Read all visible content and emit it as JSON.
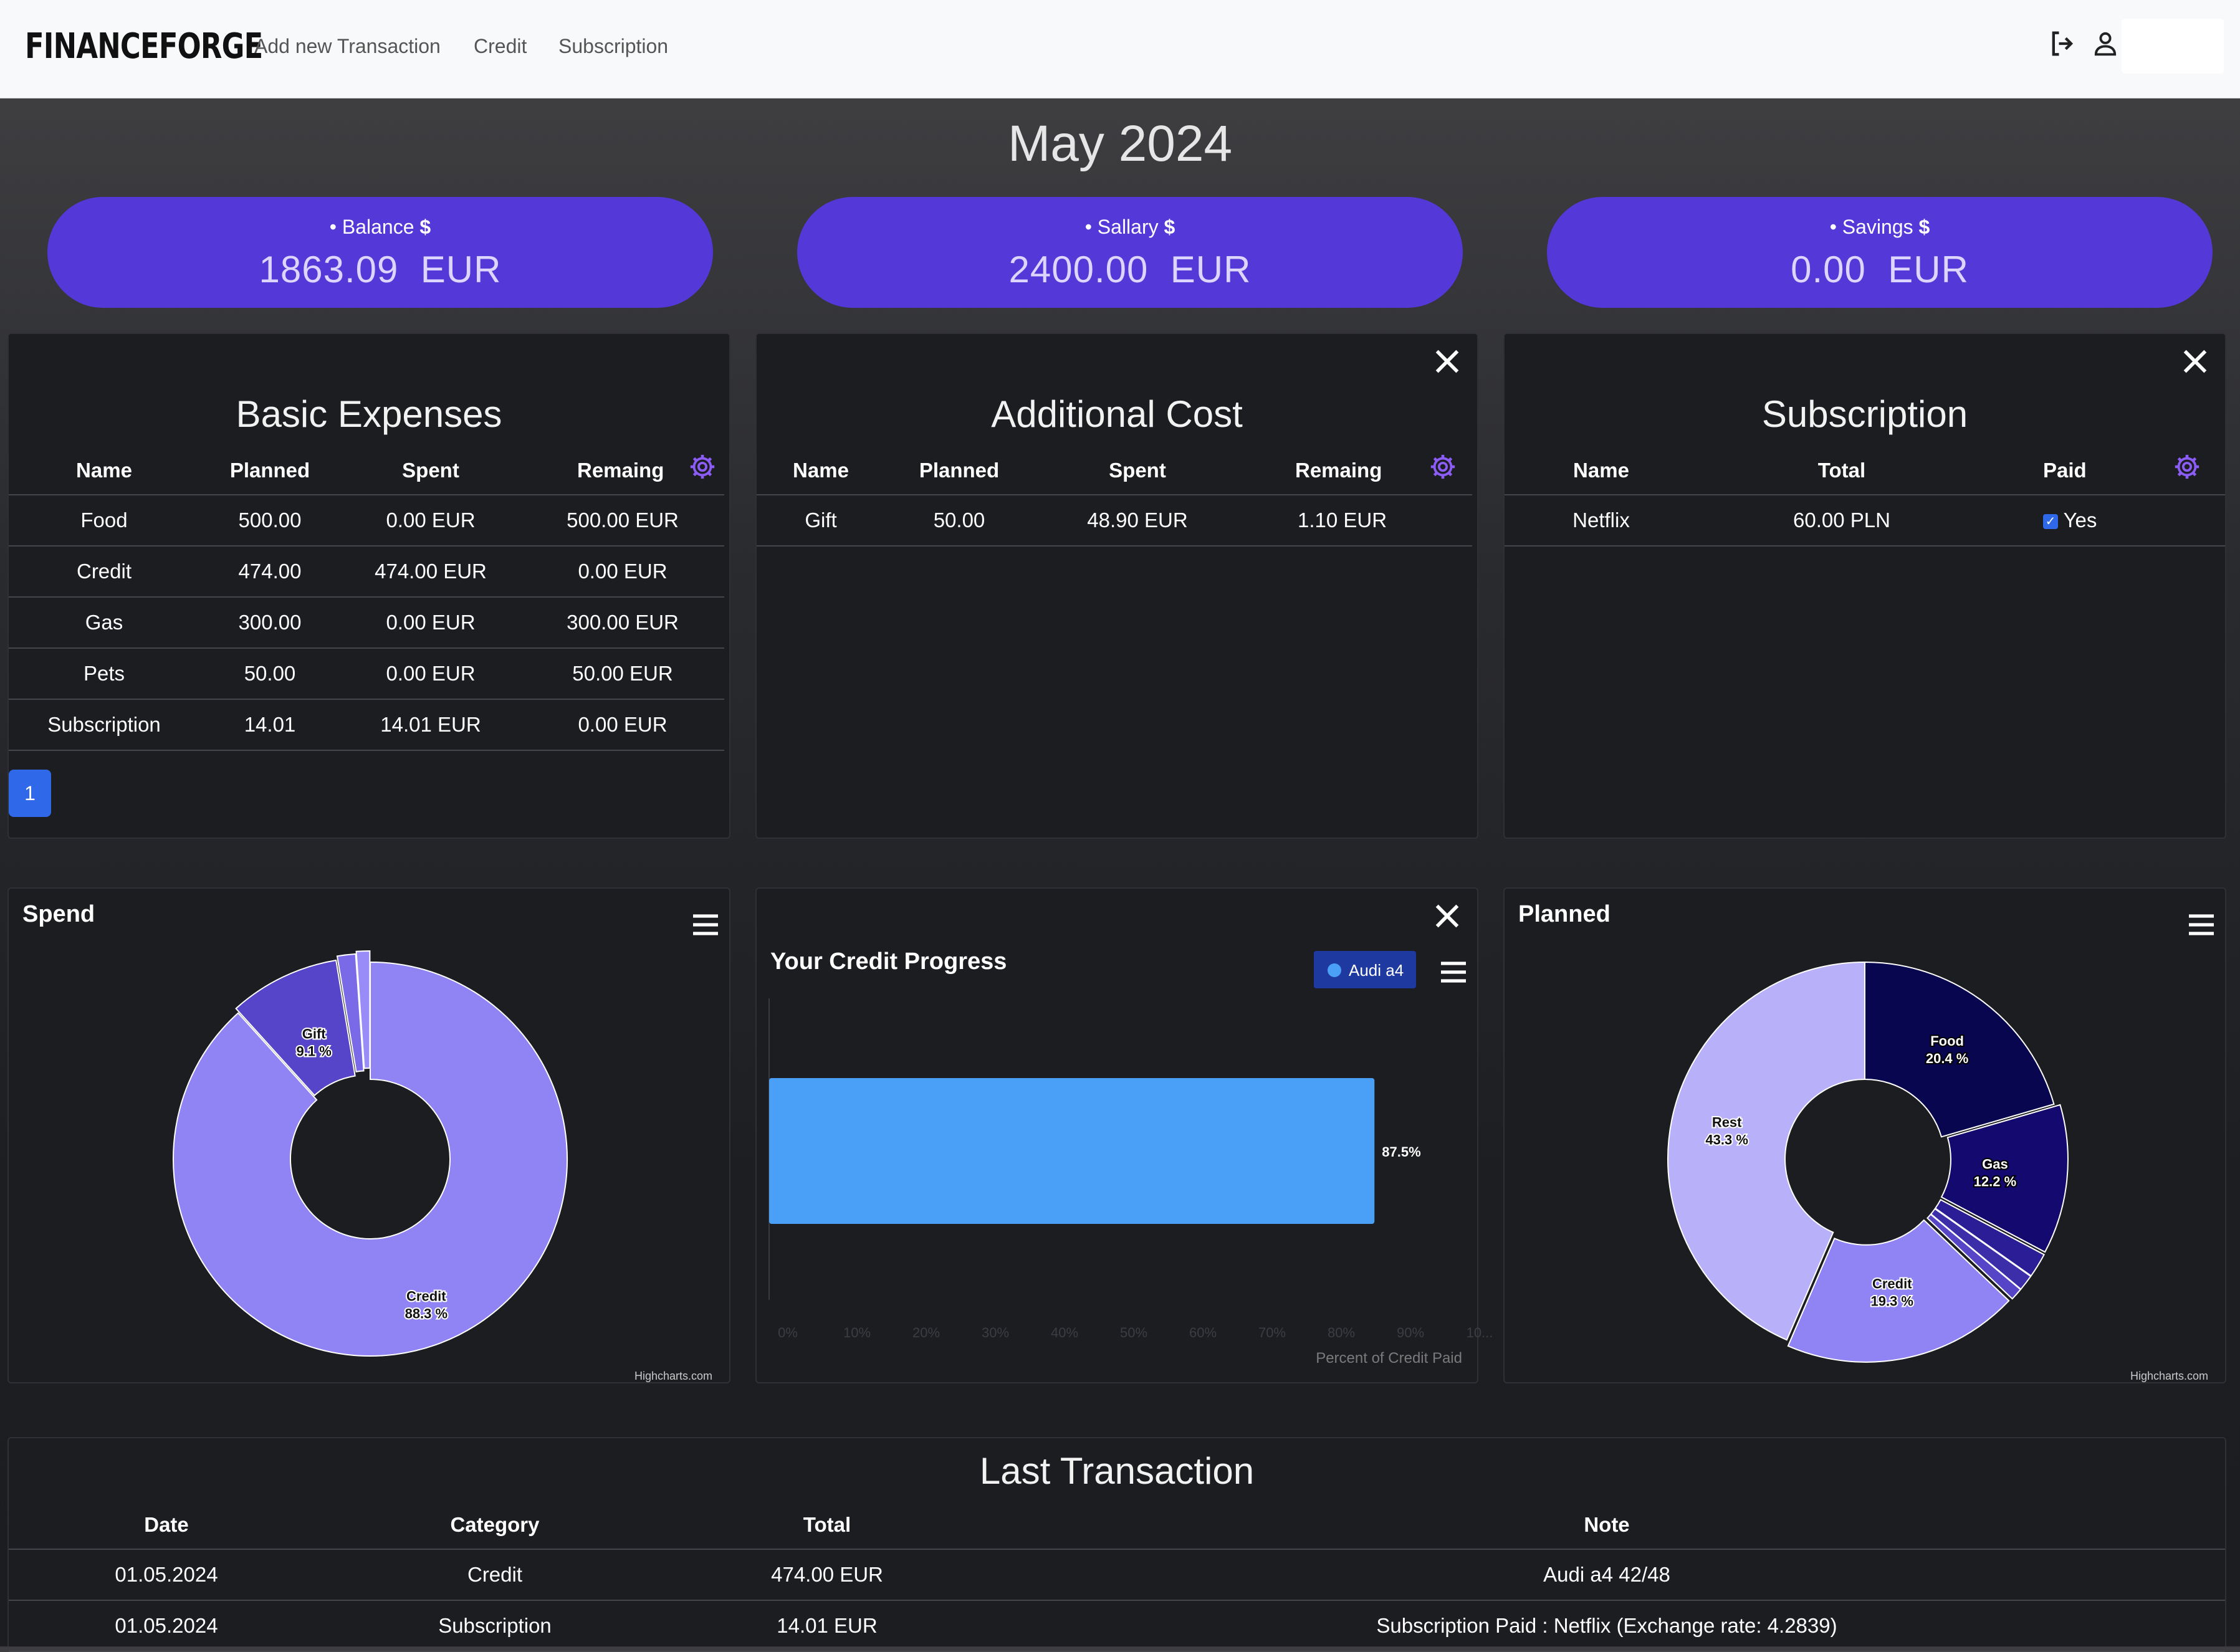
{
  "navbar": {
    "brand": "FINANCEFORGE",
    "links": [
      "Add new Transaction",
      "Credit",
      "Subscription"
    ]
  },
  "month": "May 2024",
  "summary": [
    {
      "label": "Balance",
      "value": "1863.09",
      "currency": "EUR"
    },
    {
      "label": "Sallary",
      "value": "2400.00",
      "currency": "EUR"
    },
    {
      "label": "Savings",
      "value": "0.00",
      "currency": "EUR"
    }
  ],
  "basic": {
    "title": "Basic Expenses",
    "headers": [
      "Name",
      "Planned",
      "Spent",
      "Remaing"
    ],
    "rows": [
      [
        "Food",
        "500.00",
        "0.00 EUR",
        "500.00 EUR"
      ],
      [
        "Credit",
        "474.00",
        "474.00 EUR",
        "0.00 EUR"
      ],
      [
        "Gas",
        "300.00",
        "0.00 EUR",
        "300.00 EUR"
      ],
      [
        "Pets",
        "50.00",
        "0.00 EUR",
        "50.00 EUR"
      ],
      [
        "Subscription",
        "14.01",
        "14.01 EUR",
        "0.00 EUR"
      ]
    ],
    "page": "1"
  },
  "additional": {
    "title": "Additional Cost",
    "headers": [
      "Name",
      "Planned",
      "Spent",
      "Remaing"
    ],
    "rows": [
      [
        "Gift",
        "50.00",
        "48.90 EUR",
        "1.10 EUR"
      ]
    ]
  },
  "subscription": {
    "title": "Subscription",
    "headers": [
      "Name",
      "Total",
      "Paid"
    ],
    "rows": [
      [
        "Netflix",
        "60.00 PLN",
        "Yes"
      ]
    ]
  },
  "spend_chart": {
    "title": "Spend",
    "credits": "Highcharts.com"
  },
  "credit_chart": {
    "title": "Your Credit Progress",
    "legend": "Audi a4",
    "xlabel": "Percent of Credit Paid",
    "ticks": [
      "0%",
      "10%",
      "20%",
      "30%",
      "40%",
      "50%",
      "60%",
      "70%",
      "80%",
      "90%",
      "10..."
    ],
    "value_label": "87.5%"
  },
  "planned_chart": {
    "title": "Planned",
    "credits": "Highcharts.com"
  },
  "chart_data": [
    {
      "type": "pie",
      "title": "Spend",
      "series": [
        {
          "name": "",
          "values": [
            88.3,
            9.1,
            1.5,
            1.1
          ]
        }
      ],
      "categories": [
        "Credit",
        "Gift",
        "",
        ""
      ],
      "labels": [
        "Credit\n88.3 %",
        "Gift\n9.1 %",
        "",
        ""
      ],
      "colors": [
        "#9084f5",
        "#5745c9",
        "#7b6ae8",
        "#9a8cf8"
      ]
    },
    {
      "type": "bar",
      "title": "Your Credit Progress",
      "categories": [
        "Audi a4"
      ],
      "values": [
        87.5
      ],
      "xlim": [
        0,
        100
      ],
      "xlabel": "Percent of Credit Paid",
      "color": "#4aa0f6"
    },
    {
      "type": "pie",
      "title": "Planned",
      "categories": [
        "Food",
        "Gas",
        "",
        "",
        "",
        "Credit",
        "Rest"
      ],
      "values": [
        20.4,
        12.2,
        2.0,
        1.3,
        1.0,
        19.3,
        43.3
      ],
      "labels": [
        "Food\n20.4 %",
        "Gas\n12.2 %",
        "",
        "",
        "",
        "Credit\n19.3 %",
        "Rest\n43.3 %"
      ],
      "colors": [
        "#07064f",
        "#14096e",
        "#2a1d95",
        "#3c2ea8",
        "#5645c6",
        "#9084f5",
        "#b8b0f9"
      ]
    }
  ],
  "transactions": {
    "title": "Last Transaction",
    "headers": [
      "Date",
      "Category",
      "Total",
      "Note"
    ],
    "rows": [
      [
        "01.05.2024",
        "Credit",
        "474.00 EUR",
        "Audi a4 42/48"
      ],
      [
        "01.05.2024",
        "Subscription",
        "14.01 EUR",
        "Subscription Paid : Netflix (Exchange rate: 4.2839)"
      ]
    ]
  }
}
